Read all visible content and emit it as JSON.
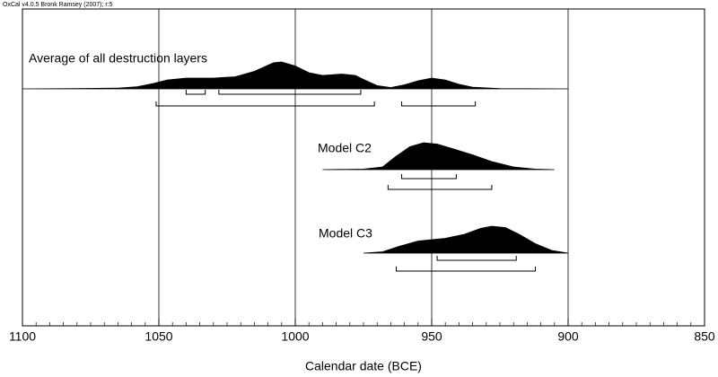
{
  "chart_data": {
    "type": "density",
    "subtitle": "OxCal v4.0.5 Bronk Ramsey (2007); r:5",
    "xlabel": "Calendar date (BCE)",
    "xlim": [
      1100,
      850
    ],
    "xticks": [
      1100,
      1050,
      1000,
      950,
      900,
      850
    ],
    "grid": true,
    "color": "#000000",
    "series": [
      {
        "name": "Average of all destruction layers",
        "x": [
          1100,
          1080,
          1065,
          1058,
          1052,
          1047,
          1040,
          1030,
          1022,
          1015,
          1008,
          1005,
          1000,
          995,
          990,
          983,
          978,
          975,
          970,
          965,
          960,
          955,
          950,
          945,
          940,
          935,
          925,
          900
        ],
        "values": [
          0,
          0.01,
          0.03,
          0.08,
          0.2,
          0.33,
          0.4,
          0.4,
          0.45,
          0.65,
          0.97,
          1.0,
          0.85,
          0.6,
          0.5,
          0.55,
          0.5,
          0.35,
          0.12,
          0.05,
          0.15,
          0.3,
          0.4,
          0.33,
          0.17,
          0.06,
          0.01,
          0
        ],
        "ranges_68": [
          [
            1040,
            1033
          ],
          [
            1028,
            976
          ]
        ],
        "ranges_95": [
          [
            1051,
            971
          ],
          [
            961,
            934
          ]
        ]
      },
      {
        "name": "Model C2",
        "x": [
          990,
          975,
          968,
          963,
          958,
          953,
          948,
          943,
          935,
          928,
          920,
          912,
          905
        ],
        "values": [
          0,
          0.02,
          0.1,
          0.5,
          0.85,
          1.0,
          0.95,
          0.8,
          0.55,
          0.3,
          0.1,
          0.02,
          0
        ],
        "ranges_68": [
          [
            961,
            941
          ]
        ],
        "ranges_95": [
          [
            966,
            928
          ]
        ]
      },
      {
        "name": "Model C3",
        "x": [
          975,
          968,
          962,
          955,
          950,
          945,
          938,
          932,
          928,
          923,
          918,
          912,
          906,
          900
        ],
        "values": [
          0,
          0.05,
          0.25,
          0.45,
          0.5,
          0.55,
          0.7,
          0.92,
          1.0,
          0.95,
          0.7,
          0.35,
          0.1,
          0
        ],
        "ranges_68": [
          [
            948,
            919
          ]
        ],
        "ranges_95": [
          [
            963,
            912
          ]
        ]
      }
    ]
  }
}
